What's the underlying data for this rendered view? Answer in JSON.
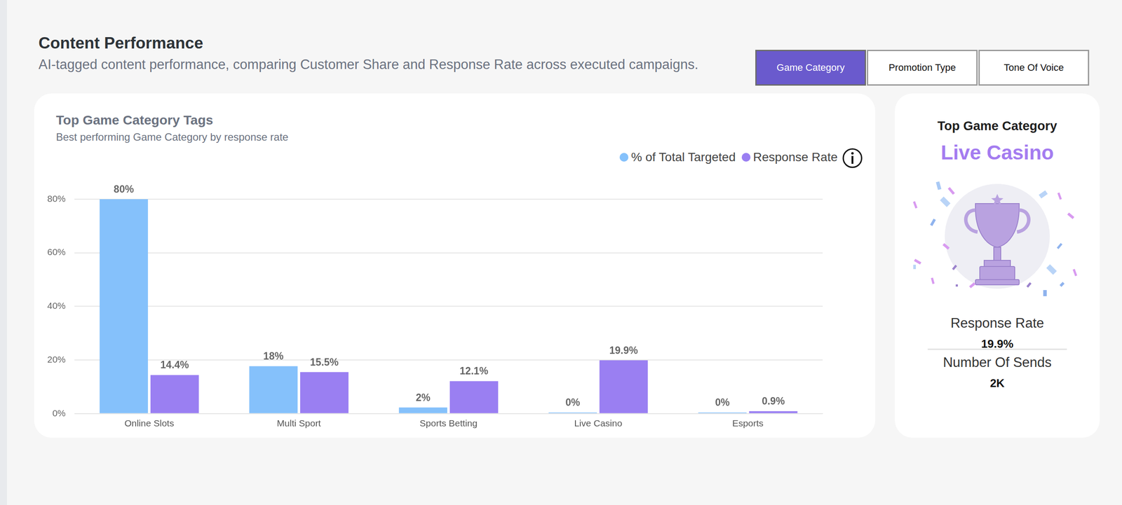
{
  "header": {
    "title": "Content Performance",
    "subtitle": "AI-tagged content performance, comparing Customer Share and Response Rate across executed campaigns."
  },
  "tabs": {
    "items": [
      "Game Category",
      "Promotion Type",
      "Tone Of Voice"
    ],
    "selected": "Game Category"
  },
  "chart_data": {
    "type": "bar",
    "title": "Top Game Category Tags",
    "subtitle": "Best performing Game Category by response rate",
    "categories": [
      "Online Slots",
      "Multi Sport",
      "Sports Betting",
      "Live Casino",
      "Esports"
    ],
    "series": [
      {
        "name": "% of Total Targeted",
        "color": "#85c1fb",
        "values": [
          80,
          17.7,
          2.3,
          0.4,
          0.4
        ],
        "value_labels": [
          "80%",
          "18%",
          "2%",
          "0%",
          "0%"
        ]
      },
      {
        "name": "Response Rate",
        "color": "#9a7ff2",
        "values": [
          14.4,
          15.5,
          12.1,
          19.9,
          0.9
        ],
        "value_labels": [
          "14.4%",
          "15.5%",
          "12.1%",
          "19.9%",
          "0.9%"
        ]
      }
    ],
    "ylim": [
      0,
      80
    ],
    "yticks": [
      {
        "value": 0,
        "label": "0%"
      },
      {
        "value": 20,
        "label": "20%"
      },
      {
        "value": 40,
        "label": "40%"
      },
      {
        "value": 60,
        "label": "60%"
      },
      {
        "value": 80,
        "label": "80%"
      }
    ],
    "grid": true,
    "legend": "top-right",
    "data_labels": true
  },
  "highlight": {
    "title": "Top Game Category",
    "winner": "Live Casino",
    "metrics": [
      {
        "label": "Response Rate",
        "value": "19.9%"
      },
      {
        "label": "Number Of Sends",
        "value": "2K"
      }
    ]
  }
}
